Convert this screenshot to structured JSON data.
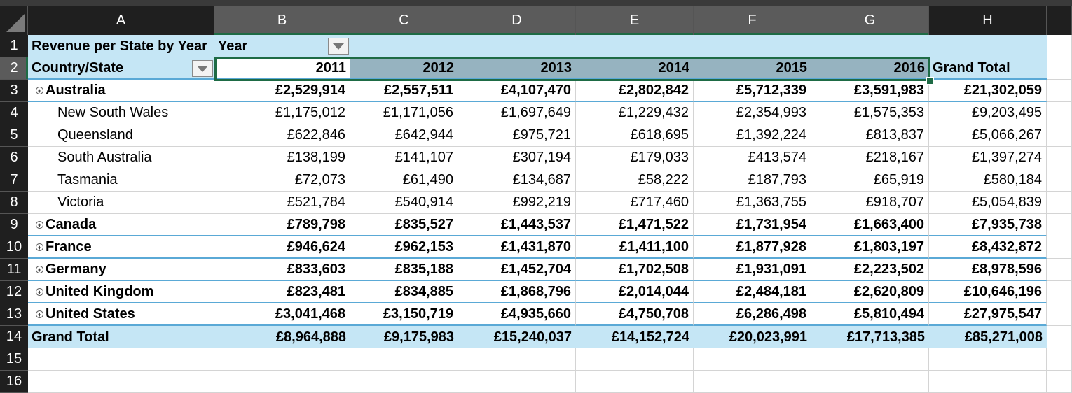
{
  "columns": [
    "A",
    "B",
    "C",
    "D",
    "E",
    "F",
    "G",
    "H"
  ],
  "rows": [
    "1",
    "2",
    "3",
    "4",
    "5",
    "6",
    "7",
    "8",
    "9",
    "10",
    "11",
    "12",
    "13",
    "14",
    "15",
    "16"
  ],
  "pivot": {
    "title": "Revenue per State by Year",
    "col_field": "Year",
    "row_field": "Country/State",
    "years": [
      "2011",
      "2012",
      "2013",
      "2014",
      "2015",
      "2016"
    ],
    "grand_total_label": "Grand Total",
    "data": [
      {
        "label": "Australia",
        "level": "country",
        "values": [
          "£2,529,914",
          "£2,557,511",
          "£4,107,470",
          "£2,802,842",
          "£5,712,339",
          "£3,591,983"
        ],
        "total": "£21,302,059"
      },
      {
        "label": "New South Wales",
        "level": "state",
        "values": [
          "£1,175,012",
          "£1,171,056",
          "£1,697,649",
          "£1,229,432",
          "£2,354,993",
          "£1,575,353"
        ],
        "total": "£9,203,495"
      },
      {
        "label": "Queensland",
        "level": "state",
        "values": [
          "£622,846",
          "£642,944",
          "£975,721",
          "£618,695",
          "£1,392,224",
          "£813,837"
        ],
        "total": "£5,066,267"
      },
      {
        "label": "South Australia",
        "level": "state",
        "values": [
          "£138,199",
          "£141,107",
          "£307,194",
          "£179,033",
          "£413,574",
          "£218,167"
        ],
        "total": "£1,397,274"
      },
      {
        "label": "Tasmania",
        "level": "state",
        "values": [
          "£72,073",
          "£61,490",
          "£134,687",
          "£58,222",
          "£187,793",
          "£65,919"
        ],
        "total": "£580,184"
      },
      {
        "label": "Victoria",
        "level": "state",
        "values": [
          "£521,784",
          "£540,914",
          "£992,219",
          "£717,460",
          "£1,363,755",
          "£918,707"
        ],
        "total": "£5,054,839"
      },
      {
        "label": "Canada",
        "level": "country",
        "values": [
          "£789,798",
          "£835,527",
          "£1,443,537",
          "£1,471,522",
          "£1,731,954",
          "£1,663,400"
        ],
        "total": "£7,935,738"
      },
      {
        "label": "France",
        "level": "country",
        "values": [
          "£946,624",
          "£962,153",
          "£1,431,870",
          "£1,411,100",
          "£1,877,928",
          "£1,803,197"
        ],
        "total": "£8,432,872"
      },
      {
        "label": "Germany",
        "level": "country",
        "values": [
          "£833,603",
          "£835,188",
          "£1,452,704",
          "£1,702,508",
          "£1,931,091",
          "£2,223,502"
        ],
        "total": "£8,978,596"
      },
      {
        "label": "United Kingdom",
        "level": "country",
        "values": [
          "£823,481",
          "£834,885",
          "£1,868,796",
          "£2,014,044",
          "£2,484,181",
          "£2,620,809"
        ],
        "total": "£10,646,196"
      },
      {
        "label": "United States",
        "level": "country",
        "values": [
          "£3,041,468",
          "£3,150,719",
          "£4,935,660",
          "£4,750,708",
          "£6,286,498",
          "£5,810,494"
        ],
        "total": "£27,975,547"
      }
    ],
    "grand_totals": [
      "£8,964,888",
      "£9,175,983",
      "£15,240,037",
      "£14,152,724",
      "£20,023,991",
      "£17,713,385"
    ],
    "grand_total_all": "£85,271,008"
  },
  "colors": {
    "header_band": "#c5e6f5",
    "selection_fill": "#96b3c0",
    "selection_border": "#1e6b45",
    "row_separator": "#5aa9d6"
  },
  "icons": {
    "filter": "dropdown-arrow-icon",
    "expand": "expand-collapse-icon"
  }
}
